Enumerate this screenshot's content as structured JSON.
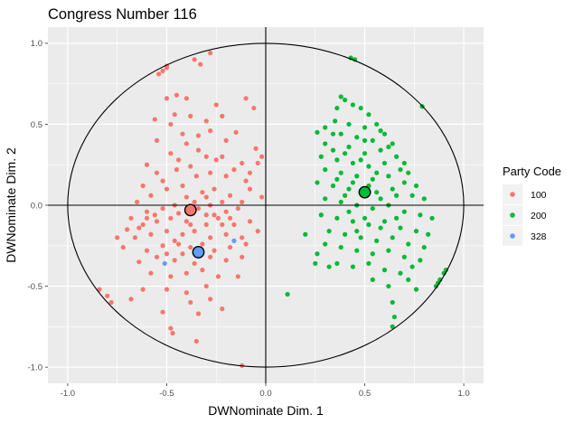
{
  "chart_data": {
    "type": "scatter",
    "title": "Congress Number  116",
    "xlabel": "DWNominate Dim. 1",
    "ylabel": "DWNominate Dim. 2",
    "xlim": [
      -1.1,
      1.1
    ],
    "ylim": [
      -1.1,
      1.1
    ],
    "x_ticks": [
      "-1.0",
      "-0.5",
      "0.0",
      "0.5",
      "1.0"
    ],
    "y_ticks": [
      "-1.0",
      "-0.5",
      "0.0",
      "0.5",
      "1.0"
    ],
    "grid": true,
    "legend": {
      "title": "Party Code",
      "placement": "right",
      "entries": [
        {
          "label": "100",
          "color": "#F8766D"
        },
        {
          "label": "200",
          "color": "#00BA38"
        },
        {
          "label": "328",
          "color": "#619CFF"
        }
      ]
    },
    "reference_circle": {
      "center": [
        0,
        0
      ],
      "radius": 1
    },
    "centroids": [
      {
        "party": "100",
        "x": -0.38,
        "y": -0.03
      },
      {
        "party": "200",
        "x": 0.5,
        "y": 0.08
      },
      {
        "party": "328",
        "x": -0.34,
        "y": -0.29
      }
    ],
    "series": [
      {
        "name": "100",
        "color": "#F8766D",
        "points": [
          [
            -0.5,
            0.85
          ],
          [
            -0.52,
            0.83
          ],
          [
            -0.5,
            0.86
          ],
          [
            -0.54,
            0.81
          ],
          [
            -0.36,
            0.9
          ],
          [
            -0.33,
            0.87
          ],
          [
            -0.28,
            0.94
          ],
          [
            -0.4,
            0.66
          ],
          [
            -0.45,
            0.68
          ],
          [
            -0.38,
            0.55
          ],
          [
            -0.5,
            0.66
          ],
          [
            -0.25,
            0.62
          ],
          [
            -0.56,
            0.53
          ],
          [
            -0.3,
            0.52
          ],
          [
            -0.34,
            0.43
          ],
          [
            -0.22,
            0.55
          ],
          [
            -0.1,
            0.66
          ],
          [
            -0.06,
            0.6
          ],
          [
            -0.48,
            0.5
          ],
          [
            -0.2,
            0.4
          ],
          [
            -0.15,
            0.45
          ],
          [
            -0.05,
            0.35
          ],
          [
            -0.02,
            0.3
          ],
          [
            -0.55,
            0.4
          ],
          [
            -0.4,
            0.38
          ],
          [
            -0.3,
            0.3
          ],
          [
            -0.25,
            0.28
          ],
          [
            -0.12,
            0.26
          ],
          [
            -0.6,
            0.25
          ],
          [
            -0.48,
            0.32
          ],
          [
            -0.62,
            0.12
          ],
          [
            -0.55,
            0.2
          ],
          [
            -0.45,
            0.22
          ],
          [
            -0.35,
            0.18
          ],
          [
            -0.28,
            0.2
          ],
          [
            -0.2,
            0.18
          ],
          [
            -0.1,
            0.15
          ],
          [
            -0.08,
            0.1
          ],
          [
            -0.65,
            0.02
          ],
          [
            -0.58,
            0.06
          ],
          [
            -0.5,
            0.1
          ],
          [
            -0.42,
            0.12
          ],
          [
            -0.32,
            0.08
          ],
          [
            -0.26,
            0.1
          ],
          [
            -0.18,
            0.06
          ],
          [
            -0.12,
            0.02
          ],
          [
            -0.02,
            0.05
          ],
          [
            -0.68,
            -0.08
          ],
          [
            -0.6,
            -0.04
          ],
          [
            -0.52,
            -0.02
          ],
          [
            -0.46,
            0.0
          ],
          [
            -0.34,
            -0.02
          ],
          [
            -0.28,
            0.0
          ],
          [
            -0.2,
            -0.04
          ],
          [
            -0.14,
            -0.02
          ],
          [
            -0.7,
            -0.15
          ],
          [
            -0.62,
            -0.12
          ],
          [
            -0.55,
            -0.1
          ],
          [
            -0.48,
            -0.08
          ],
          [
            -0.4,
            -0.1
          ],
          [
            -0.3,
            -0.12
          ],
          [
            -0.24,
            -0.08
          ],
          [
            -0.16,
            -0.12
          ],
          [
            -0.08,
            -0.1
          ],
          [
            -0.75,
            -0.2
          ],
          [
            -0.66,
            -0.2
          ],
          [
            -0.58,
            -0.18
          ],
          [
            -0.5,
            -0.16
          ],
          [
            -0.42,
            -0.18
          ],
          [
            -0.36,
            -0.16
          ],
          [
            -0.28,
            -0.2
          ],
          [
            -0.2,
            -0.18
          ],
          [
            -0.12,
            -0.2
          ],
          [
            -0.04,
            -0.16
          ],
          [
            -0.72,
            -0.26
          ],
          [
            -0.6,
            -0.28
          ],
          [
            -0.52,
            -0.25
          ],
          [
            -0.44,
            -0.24
          ],
          [
            -0.38,
            -0.26
          ],
          [
            -0.26,
            -0.28
          ],
          [
            -0.18,
            -0.26
          ],
          [
            -0.1,
            -0.24
          ],
          [
            -0.64,
            -0.35
          ],
          [
            -0.55,
            -0.32
          ],
          [
            -0.46,
            -0.34
          ],
          [
            -0.36,
            -0.36
          ],
          [
            -0.28,
            -0.32
          ],
          [
            -0.2,
            -0.34
          ],
          [
            -0.12,
            -0.32
          ],
          [
            -0.58,
            -0.42
          ],
          [
            -0.48,
            -0.44
          ],
          [
            -0.4,
            -0.42
          ],
          [
            -0.32,
            -0.4
          ],
          [
            -0.24,
            -0.44
          ],
          [
            -0.62,
            -0.52
          ],
          [
            -0.5,
            -0.52
          ],
          [
            -0.4,
            -0.54
          ],
          [
            -0.3,
            -0.5
          ],
          [
            -0.14,
            -0.44
          ],
          [
            -0.84,
            -0.52
          ],
          [
            -0.8,
            -0.56
          ],
          [
            -0.78,
            -0.6
          ],
          [
            -0.68,
            -0.58
          ],
          [
            -0.52,
            -0.66
          ],
          [
            -0.38,
            -0.6
          ],
          [
            -0.34,
            -0.67
          ],
          [
            -0.48,
            -0.76
          ],
          [
            -0.47,
            -0.79
          ],
          [
            -0.35,
            -0.84
          ],
          [
            -0.12,
            -0.99
          ],
          [
            -0.22,
            -0.64
          ],
          [
            -0.28,
            -0.58
          ],
          [
            -0.6,
            -0.08
          ],
          [
            -0.4,
            0.05
          ],
          [
            -0.36,
            0.02
          ],
          [
            -0.44,
            -0.05
          ],
          [
            -0.3,
            0.05
          ],
          [
            -0.26,
            -0.06
          ],
          [
            -0.22,
            0.02
          ],
          [
            -0.52,
            0.15
          ],
          [
            -0.44,
            0.28
          ],
          [
            -0.38,
            0.24
          ],
          [
            -0.22,
            0.3
          ],
          [
            -0.16,
            0.22
          ],
          [
            -0.34,
            0.34
          ],
          [
            -0.5,
            -0.3
          ],
          [
            -0.42,
            -0.3
          ],
          [
            -0.32,
            -0.24
          ],
          [
            -0.22,
            -0.12
          ],
          [
            -0.56,
            -0.06
          ],
          [
            -0.64,
            -0.14
          ],
          [
            -0.46,
            -0.22
          ],
          [
            -0.38,
            -0.12
          ],
          [
            -0.3,
            -0.06
          ],
          [
            -0.18,
            -0.08
          ],
          [
            -0.08,
            0.2
          ],
          [
            -0.04,
            0.26
          ],
          [
            -0.42,
            0.44
          ],
          [
            -0.46,
            0.56
          ],
          [
            -0.28,
            0.46
          ]
        ]
      },
      {
        "name": "200",
        "color": "#00BA38",
        "points": [
          [
            0.43,
            0.91
          ],
          [
            0.45,
            0.9
          ],
          [
            0.79,
            0.61
          ],
          [
            0.38,
            0.67
          ],
          [
            0.4,
            0.65
          ],
          [
            0.36,
            0.6
          ],
          [
            0.44,
            0.62
          ],
          [
            0.48,
            0.6
          ],
          [
            0.52,
            0.56
          ],
          [
            0.35,
            0.52
          ],
          [
            0.42,
            0.5
          ],
          [
            0.5,
            0.48
          ],
          [
            0.56,
            0.5
          ],
          [
            0.3,
            0.48
          ],
          [
            0.26,
            0.45
          ],
          [
            0.38,
            0.44
          ],
          [
            0.46,
            0.42
          ],
          [
            0.54,
            0.4
          ],
          [
            0.6,
            0.44
          ],
          [
            0.64,
            0.38
          ],
          [
            0.3,
            0.38
          ],
          [
            0.34,
            0.34
          ],
          [
            0.42,
            0.36
          ],
          [
            0.5,
            0.32
          ],
          [
            0.58,
            0.34
          ],
          [
            0.66,
            0.3
          ],
          [
            0.28,
            0.3
          ],
          [
            0.36,
            0.28
          ],
          [
            0.44,
            0.26
          ],
          [
            0.52,
            0.24
          ],
          [
            0.6,
            0.26
          ],
          [
            0.68,
            0.22
          ],
          [
            0.72,
            0.2
          ],
          [
            0.3,
            0.22
          ],
          [
            0.38,
            0.2
          ],
          [
            0.46,
            0.18
          ],
          [
            0.54,
            0.16
          ],
          [
            0.62,
            0.18
          ],
          [
            0.7,
            0.14
          ],
          [
            0.76,
            0.12
          ],
          [
            0.26,
            0.14
          ],
          [
            0.34,
            0.12
          ],
          [
            0.42,
            0.1
          ],
          [
            0.56,
            0.08
          ],
          [
            0.64,
            0.1
          ],
          [
            0.74,
            0.06
          ],
          [
            0.8,
            0.04
          ],
          [
            0.3,
            0.04
          ],
          [
            0.38,
            0.02
          ],
          [
            0.46,
            0.0
          ],
          [
            0.54,
            -0.02
          ],
          [
            0.62,
            0.0
          ],
          [
            0.7,
            -0.04
          ],
          [
            0.78,
            -0.06
          ],
          [
            0.84,
            -0.08
          ],
          [
            0.28,
            -0.06
          ],
          [
            0.36,
            -0.08
          ],
          [
            0.44,
            -0.1
          ],
          [
            0.52,
            -0.12
          ],
          [
            0.6,
            -0.1
          ],
          [
            0.68,
            -0.14
          ],
          [
            0.76,
            -0.16
          ],
          [
            0.82,
            -0.18
          ],
          [
            0.32,
            -0.16
          ],
          [
            0.4,
            -0.18
          ],
          [
            0.48,
            -0.2
          ],
          [
            0.56,
            -0.22
          ],
          [
            0.64,
            -0.2
          ],
          [
            0.72,
            -0.24
          ],
          [
            0.8,
            -0.26
          ],
          [
            0.2,
            -0.18
          ],
          [
            0.3,
            -0.24
          ],
          [
            0.38,
            -0.26
          ],
          [
            0.46,
            -0.28
          ],
          [
            0.54,
            -0.3
          ],
          [
            0.62,
            -0.28
          ],
          [
            0.7,
            -0.32
          ],
          [
            0.78,
            -0.34
          ],
          [
            0.26,
            -0.3
          ],
          [
            0.36,
            -0.36
          ],
          [
            0.44,
            -0.38
          ],
          [
            0.52,
            -0.36
          ],
          [
            0.6,
            -0.4
          ],
          [
            0.68,
            -0.42
          ],
          [
            0.74,
            -0.38
          ],
          [
            0.25,
            -0.36
          ],
          [
            0.32,
            -0.38
          ],
          [
            0.54,
            -0.46
          ],
          [
            0.62,
            -0.5
          ],
          [
            0.72,
            -0.46
          ],
          [
            0.76,
            -0.52
          ],
          [
            0.86,
            -0.5
          ],
          [
            0.88,
            -0.46
          ],
          [
            0.9,
            -0.42
          ],
          [
            0.91,
            -0.4
          ],
          [
            0.87,
            -0.48
          ],
          [
            0.11,
            -0.55
          ],
          [
            0.64,
            -0.6
          ],
          [
            0.65,
            -0.69
          ],
          [
            0.64,
            -0.75
          ],
          [
            0.48,
            0.08
          ],
          [
            0.52,
            0.12
          ],
          [
            0.44,
            0.14
          ],
          [
            0.58,
            0.04
          ],
          [
            0.4,
            0.06
          ],
          [
            0.48,
            0.28
          ],
          [
            0.56,
            0.2
          ],
          [
            0.5,
            0.4
          ],
          [
            0.58,
            0.46
          ],
          [
            0.4,
            0.32
          ],
          [
            0.34,
            0.44
          ],
          [
            0.62,
            0.36
          ],
          [
            0.66,
            0.06
          ],
          [
            0.42,
            -0.04
          ],
          [
            0.5,
            -0.08
          ],
          [
            0.58,
            -0.14
          ],
          [
            0.66,
            -0.08
          ],
          [
            0.46,
            -0.16
          ],
          [
            0.7,
            0.26
          ],
          [
            0.36,
            0.16
          ]
        ]
      },
      {
        "name": "328",
        "color": "#619CFF",
        "points": [
          [
            -0.51,
            -0.36
          ],
          [
            -0.16,
            -0.22
          ]
        ]
      }
    ]
  }
}
